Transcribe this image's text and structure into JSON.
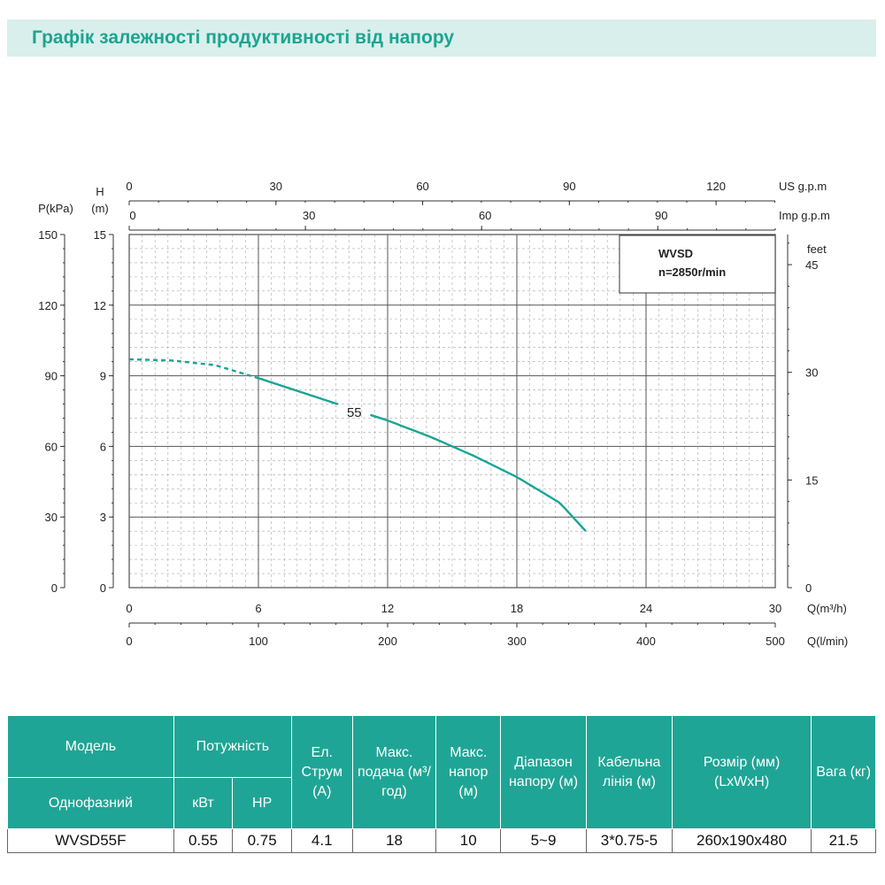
{
  "header": {
    "title": "Графік залежності продуктивності від напору"
  },
  "chart_data": {
    "type": "line",
    "title": "Графік залежності продуктивності від напору",
    "box_title": "WVSD",
    "box_subtitle": "n=2850r/min",
    "series": [
      {
        "name": "55",
        "x_unit": "Q(m³/h)",
        "y_unit": "H(m)",
        "points": [
          [
            0,
            9.7
          ],
          [
            2,
            9.65
          ],
          [
            4,
            9.45
          ],
          [
            6,
            8.9
          ],
          [
            8,
            8.3
          ],
          [
            10,
            7.7
          ],
          [
            12,
            7.1
          ],
          [
            14,
            6.4
          ],
          [
            16,
            5.6
          ],
          [
            18,
            4.7
          ],
          [
            20,
            3.6
          ],
          [
            21.2,
            2.4
          ]
        ],
        "dashed_until_x": 6,
        "gap": [
          9.7,
          11.2
        ]
      }
    ],
    "axes": {
      "x_q_m3h": {
        "label": "Q(m³/h)",
        "ticks": [
          0,
          6,
          12,
          18,
          24,
          30
        ],
        "range": [
          0,
          30
        ]
      },
      "x_q_lmin": {
        "label": "Q(l/min)",
        "ticks": [
          0,
          100,
          200,
          300,
          400,
          500
        ],
        "range": [
          0,
          500
        ]
      },
      "x_us_gpm": {
        "label": "US g.p.m",
        "ticks": [
          0,
          30,
          60,
          90,
          120
        ],
        "range": [
          0,
          132.1
        ]
      },
      "x_imp_gpm": {
        "label": "Imp g.p.m",
        "ticks": [
          0,
          30,
          60,
          90
        ],
        "range": [
          0,
          110
        ]
      },
      "y_h_m": {
        "label_line1": "H",
        "label_line2": "(m)",
        "ticks": [
          0,
          3,
          6,
          9,
          12,
          15
        ],
        "range": [
          0,
          15
        ]
      },
      "y_p_kpa": {
        "label": "P(kPa)",
        "ticks": [
          0,
          30,
          60,
          90,
          120,
          150
        ],
        "range": [
          0,
          150
        ]
      },
      "y_feet": {
        "label": "feet",
        "ticks": [
          0,
          15,
          30,
          45
        ],
        "range": [
          0,
          49.2
        ]
      }
    },
    "curve_label": "55"
  },
  "table": {
    "headers_row1": {
      "model": "Модель",
      "power": "Потужність",
      "current": "Ел. Струм (А)",
      "max_flow": "Макс. подача (м³/год)",
      "max_head": "Макс. напор (м)",
      "head_range": "Діапазон напору (м)",
      "cable": "Кабельна лінія (м)",
      "size": "Розмір (мм) (LxWxH)",
      "weight": "Вага (кг)"
    },
    "headers_row2": {
      "phase": "Однофазний",
      "kw": "кВт",
      "hp": "HP"
    },
    "rows": [
      {
        "model": "WVSD55F",
        "kw": "0.55",
        "hp": "0.75",
        "current": "4.1",
        "max_flow": "18",
        "max_head": "10",
        "head_range": "5~9",
        "cable": "3*0.75-5",
        "size": "260x190x480",
        "weight": "21.5"
      }
    ]
  }
}
